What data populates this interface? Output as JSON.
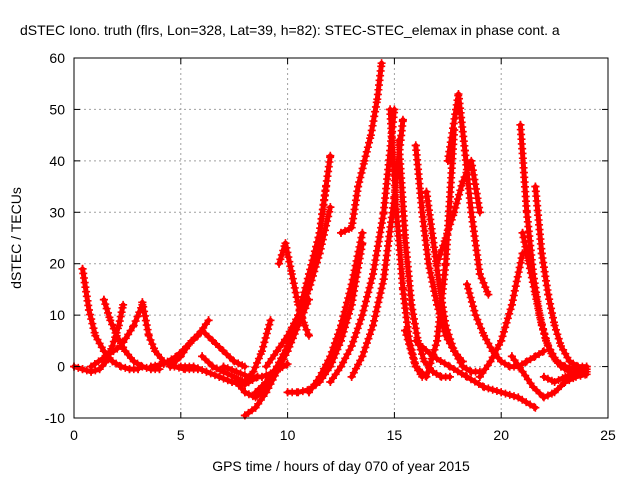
{
  "chart_data": {
    "type": "scatter",
    "title": "dSTEC Iono. truth (flrs, Lon=328, Lat=39, h=82): STEC-STEC_elemax in phase cont. a",
    "xlabel": "GPS time / hours of day 070 of year 2015",
    "ylabel": "dSTEC  / TECUs",
    "xlim": [
      0,
      25
    ],
    "ylim": [
      -10,
      60
    ],
    "x_ticks": [
      "0",
      "5",
      "10",
      "15",
      "20",
      "25"
    ],
    "y_ticks": [
      "-10",
      "0",
      "10",
      "20",
      "30",
      "40",
      "50",
      "60"
    ],
    "grid": true,
    "legend": "none",
    "marker": "+",
    "color": "#ff0000",
    "series": [
      {
        "x": [
          0.4,
          0.7,
          1.0,
          1.4,
          1.8,
          2.2,
          2.6,
          3.0
        ],
        "y": [
          19,
          11,
          6,
          3,
          1,
          0,
          -0.5,
          -0.5
        ]
      },
      {
        "x": [
          0.0,
          0.4,
          0.8,
          1.2,
          1.5,
          1.8,
          2.1,
          2.3
        ],
        "y": [
          0,
          -0.5,
          -1,
          -0.5,
          1,
          4,
          8,
          12
        ]
      },
      {
        "x": [
          1.4,
          1.7,
          2.0,
          2.4,
          2.8,
          3.2,
          3.6,
          4.0
        ],
        "y": [
          13,
          9,
          6,
          3,
          1,
          0,
          -0.5,
          -0.5
        ]
      },
      {
        "x": [
          0.8,
          1.5,
          2.2,
          2.8,
          3.2
        ],
        "y": [
          0,
          2,
          4,
          8,
          12
        ]
      },
      {
        "x": [
          3.2,
          3.5,
          3.8,
          4.2,
          4.7,
          5.2,
          5.8
        ],
        "y": [
          12.5,
          6,
          3,
          1,
          0,
          -0.5,
          -0.5
        ]
      },
      {
        "x": [
          3.6,
          4.2,
          4.8,
          5.3,
          5.8,
          6.3
        ],
        "y": [
          0,
          0.5,
          2,
          4,
          6,
          9
        ]
      },
      {
        "x": [
          4.5,
          5.0,
          5.5,
          6.0,
          6.5,
          7.0,
          7.5,
          8.0
        ],
        "y": [
          0,
          2,
          5,
          7,
          5,
          3,
          1,
          0
        ]
      },
      {
        "x": [
          5.0,
          5.6,
          6.2,
          6.8,
          7.4,
          8.0,
          8.6
        ],
        "y": [
          0,
          0,
          -1,
          -2,
          -3,
          -3.5,
          -2
        ]
      },
      {
        "x": [
          6.0,
          6.5,
          7.0,
          7.5,
          8.0,
          8.4,
          8.8,
          9.2
        ],
        "y": [
          2,
          0,
          -1,
          -2,
          -3,
          -1,
          3,
          9
        ]
      },
      {
        "x": [
          7.0,
          7.6,
          8.2,
          8.8,
          9.4,
          10.0
        ],
        "y": [
          0,
          -1,
          -2,
          -2,
          -1,
          0.5
        ]
      },
      {
        "x": [
          7.6,
          8.0,
          8.5,
          9.0,
          9.5,
          10.0,
          10.5,
          11.0
        ],
        "y": [
          -3,
          -5,
          -6,
          -4,
          -1,
          3,
          8,
          13
        ]
      },
      {
        "x": [
          8.0,
          8.5,
          9.0,
          9.5,
          10.0,
          10.5,
          11.0,
          11.5,
          11.8
        ],
        "y": [
          -9.5,
          -8,
          -5,
          -1,
          4,
          10,
          18,
          26,
          35
        ]
      },
      {
        "x": [
          8.5,
          9.0,
          9.5,
          10.0,
          10.5,
          11.0,
          11.5,
          12.0
        ],
        "y": [
          -5,
          -3,
          0,
          4,
          9,
          16,
          26,
          41
        ]
      },
      {
        "x": [
          9.0,
          9.5,
          10.0,
          10.5,
          11.0,
          11.5,
          12.0
        ],
        "y": [
          0,
          3,
          6,
          10,
          15,
          22,
          31
        ]
      },
      {
        "x": [
          9.6,
          9.9,
          10.2,
          10.5,
          10.8,
          11.0
        ],
        "y": [
          20,
          24,
          18,
          12,
          8,
          6
        ]
      },
      {
        "x": [
          10.0,
          10.5,
          11.0,
          11.5,
          12.0,
          12.5,
          13.0,
          13.5
        ],
        "y": [
          -5,
          -5,
          -4.5,
          -3,
          0,
          5,
          12,
          24
        ]
      },
      {
        "x": [
          11.0,
          11.5,
          12.0,
          12.5,
          13.0,
          13.5
        ],
        "y": [
          -5,
          -2,
          2,
          8,
          16,
          26
        ]
      },
      {
        "x": [
          12.5,
          13.0,
          13.3,
          13.6,
          13.9,
          14.2,
          14.4
        ],
        "y": [
          26,
          27,
          35,
          40,
          45,
          52,
          59
        ]
      },
      {
        "x": [
          12.0,
          12.5,
          13.0,
          13.5,
          14.0,
          14.5,
          15.0
        ],
        "y": [
          -3,
          0,
          4,
          10,
          18,
          30,
          50
        ]
      },
      {
        "x": [
          13.0,
          13.5,
          14.0,
          14.5,
          15.0,
          15.4
        ],
        "y": [
          -2,
          2,
          8,
          17,
          33,
          48
        ]
      },
      {
        "x": [
          14.8,
          15.1,
          15.4,
          15.7,
          16.0,
          16.3
        ],
        "y": [
          50,
          30,
          15,
          5,
          0,
          -2
        ]
      },
      {
        "x": [
          15.2,
          15.5,
          15.8,
          16.1,
          16.4,
          16.8,
          17.2,
          17.6
        ],
        "y": [
          44,
          25,
          12,
          5,
          1,
          -1,
          -2,
          -2
        ]
      },
      {
        "x": [
          16.0,
          16.3,
          16.6,
          17.0,
          17.4,
          17.8,
          18.2
        ],
        "y": [
          43,
          30,
          20,
          12,
          6,
          3,
          1
        ]
      },
      {
        "x": [
          15.5,
          16.0,
          16.5,
          17.0,
          17.4,
          17.8
        ],
        "y": [
          7,
          0,
          -2,
          5,
          20,
          46
        ]
      },
      {
        "x": [
          16.5,
          16.8,
          17.1,
          17.4,
          17.8,
          18.2,
          18.6,
          19.0
        ],
        "y": [
          34,
          25,
          16,
          8,
          3,
          0,
          -1,
          -1
        ]
      },
      {
        "x": [
          17.0,
          17.4,
          17.8,
          18.2,
          18.6,
          19.0
        ],
        "y": [
          20,
          25,
          30,
          36,
          40,
          30
        ]
      },
      {
        "x": [
          17.5,
          18.0,
          18.3,
          18.6,
          19.0,
          19.4
        ],
        "y": [
          40,
          53,
          42,
          30,
          18,
          14
        ]
      },
      {
        "x": [
          16.0,
          16.8,
          17.6,
          18.4,
          19.2,
          20.0,
          20.8,
          21.6
        ],
        "y": [
          5,
          2,
          0,
          -2,
          -4,
          -5,
          -6,
          -8
        ]
      },
      {
        "x": [
          18.4,
          18.8,
          19.2,
          19.6,
          20.0,
          20.4,
          20.8,
          21.2,
          21.6,
          22.0
        ],
        "y": [
          16,
          10,
          6,
          3,
          1,
          0,
          0,
          1,
          2,
          3
        ]
      },
      {
        "x": [
          19.0,
          19.5,
          20.0,
          20.5,
          21.0
        ],
        "y": [
          -2,
          1,
          5,
          12,
          22
        ]
      },
      {
        "x": [
          20.9,
          21.2,
          21.5,
          21.8,
          22.1,
          22.4,
          22.8,
          23.2
        ],
        "y": [
          47,
          30,
          18,
          10,
          5,
          2,
          0,
          -1
        ]
      },
      {
        "x": [
          21.0,
          21.3,
          21.6,
          21.9,
          22.2,
          22.6,
          23.0,
          23.5,
          24.0
        ],
        "y": [
          26,
          20,
          14,
          8,
          4,
          1,
          0,
          -0.5,
          -0.5
        ]
      },
      {
        "x": [
          21.6,
          21.9,
          22.2,
          22.5,
          22.8,
          23.2,
          23.6,
          24.0
        ],
        "y": [
          35,
          22,
          14,
          8,
          4,
          1,
          0,
          0
        ]
      },
      {
        "x": [
          20.5,
          21.0,
          21.5,
          22.0,
          22.5,
          23.0,
          23.5,
          24.0
        ],
        "y": [
          2,
          -1,
          -4,
          -6,
          -5,
          -3,
          -2,
          -1.5
        ]
      },
      {
        "x": [
          22.0,
          22.5,
          23.0,
          23.5,
          24.0
        ],
        "y": [
          -2,
          -3,
          -2,
          -1,
          -1
        ]
      }
    ]
  }
}
